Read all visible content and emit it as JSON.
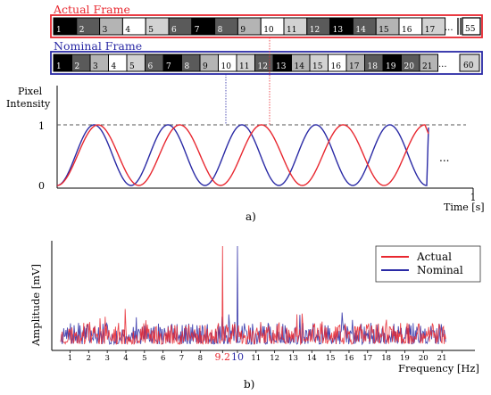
{
  "frames": {
    "actual": {
      "label": "Actual Frame",
      "color": "#e8272f",
      "cells": [
        {
          "n": "1",
          "shade": "#000000"
        },
        {
          "n": "2",
          "shade": "#5a5a5a"
        },
        {
          "n": "3",
          "shade": "#b4b4b4"
        },
        {
          "n": "4",
          "shade": "#ffffff"
        },
        {
          "n": "5",
          "shade": "#d2d2d2"
        },
        {
          "n": "6",
          "shade": "#5a5a5a"
        },
        {
          "n": "7",
          "shade": "#000000"
        },
        {
          "n": "8",
          "shade": "#5a5a5a"
        },
        {
          "n": "9",
          "shade": "#b4b4b4"
        },
        {
          "n": "10",
          "shade": "#ffffff"
        },
        {
          "n": "11",
          "shade": "#d2d2d2"
        },
        {
          "n": "12",
          "shade": "#5a5a5a"
        },
        {
          "n": "13",
          "shade": "#000000"
        },
        {
          "n": "14",
          "shade": "#5a5a5a"
        },
        {
          "n": "15",
          "shade": "#b4b4b4"
        },
        {
          "n": "16",
          "shade": "#ffffff"
        },
        {
          "n": "17",
          "shade": "#d2d2d2"
        }
      ],
      "ellipsis": "...",
      "last": "55"
    },
    "nominal": {
      "label": "Nominal Frame",
      "color": "#2a2aa5",
      "cells": [
        {
          "n": "1",
          "shade": "#000000"
        },
        {
          "n": "2",
          "shade": "#5a5a5a"
        },
        {
          "n": "3",
          "shade": "#b4b4b4"
        },
        {
          "n": "4",
          "shade": "#ffffff"
        },
        {
          "n": "5",
          "shade": "#d2d2d2"
        },
        {
          "n": "6",
          "shade": "#5a5a5a"
        },
        {
          "n": "7",
          "shade": "#000000"
        },
        {
          "n": "8",
          "shade": "#5a5a5a"
        },
        {
          "n": "9",
          "shade": "#b4b4b4"
        },
        {
          "n": "10",
          "shade": "#ffffff"
        },
        {
          "n": "11",
          "shade": "#d2d2d2"
        },
        {
          "n": "12",
          "shade": "#5a5a5a"
        },
        {
          "n": "13",
          "shade": "#000000"
        },
        {
          "n": "14",
          "shade": "#b4b4b4"
        },
        {
          "n": "15",
          "shade": "#d2d2d2"
        },
        {
          "n": "16",
          "shade": "#ffffff"
        },
        {
          "n": "17",
          "shade": "#b4b4b4"
        },
        {
          "n": "18",
          "shade": "#5a5a5a"
        },
        {
          "n": "19",
          "shade": "#000000"
        },
        {
          "n": "20",
          "shade": "#5a5a5a"
        },
        {
          "n": "21",
          "shade": "#b4b4b4"
        }
      ],
      "ellipsis": "...",
      "last": "60"
    }
  },
  "waveform": {
    "ylabel_line1": "Pixel",
    "ylabel_line2": "Intensity",
    "ytick_top": "1",
    "ytick_bottom": "0",
    "xtick_end": "1",
    "xlabel": "Time [s]",
    "ellipsis": "...",
    "caption": "a)",
    "actual_cycles": 4.5,
    "nominal_cycles": 5
  },
  "spectrum": {
    "ylabel": "Amplitude [mV]",
    "xlabel": "Frequency [Hz]",
    "caption": "b)",
    "xticks": [
      "1",
      "2",
      "3",
      "4",
      "5",
      "6",
      "7",
      "8",
      "9.2",
      "10",
      "11",
      "12",
      "13",
      "14",
      "15",
      "16",
      "17",
      "18",
      "19",
      "20",
      "21"
    ],
    "highlight_ticks": {
      "9.2": "#e8272f",
      "10": "#2a2aa5"
    },
    "legend": [
      {
        "name": "Actual",
        "color": "#e8272f"
      },
      {
        "name": "Nominal",
        "color": "#2a2aa5"
      }
    ],
    "peaks": [
      {
        "series": "Actual",
        "freq": 9.2
      },
      {
        "series": "Nominal",
        "freq": 10
      }
    ]
  }
}
